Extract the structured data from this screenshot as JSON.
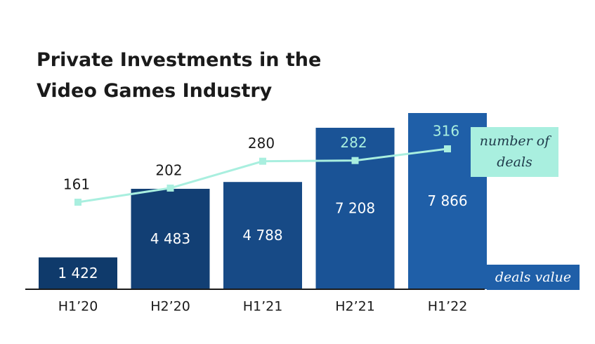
{
  "chart_data": {
    "type": "bar-line",
    "title": "Private Investments in the Video Games Industry",
    "categories": [
      "H1’20",
      "H2’20",
      "H1’21",
      "H2’21",
      "H1’22"
    ],
    "series": [
      {
        "name": "deals value",
        "type": "bar",
        "values": [
          1422,
          4483,
          4788,
          7208,
          7866
        ],
        "value_labels": [
          "1 422",
          "4 483",
          "4 788",
          "7 208",
          "7 866"
        ],
        "colors": [
          "#0f3a6b",
          "#123f74",
          "#174a86",
          "#1a5396",
          "#1f5fa8"
        ],
        "color": "#1f5fa8"
      },
      {
        "name": "number of deals",
        "type": "line",
        "values": [
          161,
          202,
          280,
          282,
          316
        ],
        "color": "#a9efdf"
      }
    ]
  }
}
